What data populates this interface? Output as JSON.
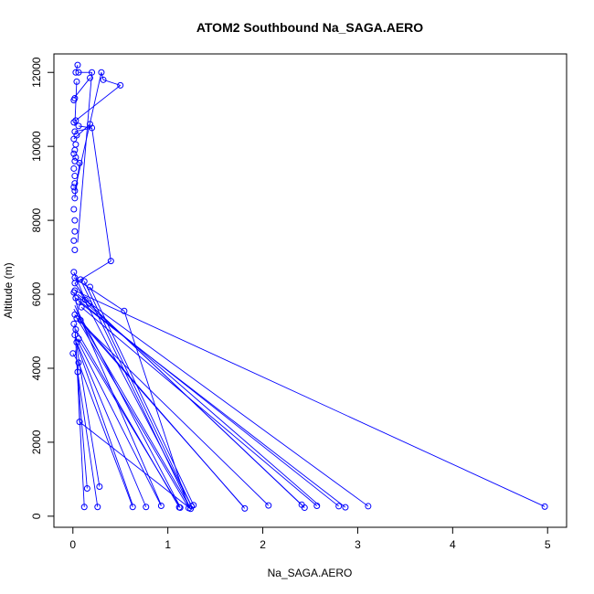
{
  "chart_data": {
    "type": "scatter",
    "title": "ATOM2 Southbound Na_SAGA.AERO",
    "xlabel": "Na_SAGA.AERO",
    "ylabel": "Altitude (m)",
    "xlim": [
      -0.2,
      5.2
    ],
    "ylim": [
      -300,
      12500
    ],
    "xticks": [
      0,
      1,
      2,
      3,
      4,
      5
    ],
    "yticks": [
      0,
      2000,
      4000,
      6000,
      8000,
      10000,
      12000
    ],
    "grid": false,
    "legend": "none",
    "color": "#0000ff",
    "marker": "open-circle",
    "connected": true,
    "points": [
      [
        0.05,
        12200
      ],
      [
        0.03,
        12000
      ],
      [
        0.06,
        12000
      ],
      [
        0.2,
        12000
      ],
      [
        0.3,
        12000
      ],
      [
        0.32,
        11800
      ],
      [
        0.5,
        11650
      ],
      [
        0.18,
        11850
      ],
      [
        0.04,
        11750
      ],
      [
        0.02,
        11300
      ],
      [
        0.01,
        11250
      ],
      [
        0.03,
        10700
      ],
      [
        0.01,
        10650
      ],
      [
        0.06,
        10550
      ],
      [
        0.18,
        10600
      ],
      [
        0.2,
        10500
      ],
      [
        0.02,
        10400
      ],
      [
        0.04,
        10300
      ],
      [
        0.01,
        10200
      ],
      [
        0.03,
        10050
      ],
      [
        0.02,
        9900
      ],
      [
        0.01,
        9800
      ],
      [
        0.03,
        9700
      ],
      [
        0.02,
        9600
      ],
      [
        0.07,
        9550
      ],
      [
        0.01,
        9400
      ],
      [
        0.02,
        9200
      ],
      [
        0.02,
        9000
      ],
      [
        0.01,
        8900
      ],
      [
        0.02,
        8800
      ],
      [
        0.02,
        8600
      ],
      [
        0.01,
        8300
      ],
      [
        0.02,
        8000
      ],
      [
        0.02,
        7700
      ],
      [
        0.01,
        7450
      ],
      [
        0.02,
        7200
      ],
      [
        0.4,
        6900
      ],
      [
        0.01,
        6600
      ],
      [
        0.02,
        6450
      ],
      [
        0.02,
        6300
      ],
      [
        0.08,
        6400
      ],
      [
        0.12,
        6350
      ],
      [
        0.18,
        6200
      ],
      [
        0.02,
        6100
      ],
      [
        0.01,
        6050
      ],
      [
        0.03,
        5900
      ],
      [
        0.06,
        5800
      ],
      [
        0.09,
        5650
      ],
      [
        0.13,
        5850
      ],
      [
        0.17,
        5750
      ],
      [
        0.54,
        5550
      ],
      [
        0.02,
        5450
      ],
      [
        0.04,
        5350
      ],
      [
        0.08,
        5300
      ],
      [
        0.01,
        5200
      ],
      [
        0.03,
        5050
      ],
      [
        0.02,
        4900
      ],
      [
        0.06,
        4800
      ],
      [
        0.04,
        4700
      ],
      [
        0.0,
        4400
      ],
      [
        0.06,
        4150
      ],
      [
        0.05,
        3900
      ],
      [
        0.07,
        2550
      ],
      [
        0.15,
        750
      ],
      [
        0.28,
        800
      ],
      [
        0.12,
        250
      ],
      [
        0.26,
        250
      ],
      [
        0.63,
        250
      ],
      [
        0.77,
        250
      ],
      [
        0.93,
        280
      ],
      [
        1.12,
        240
      ],
      [
        1.13,
        230
      ],
      [
        1.22,
        220
      ],
      [
        1.24,
        200
      ],
      [
        1.25,
        270
      ],
      [
        1.27,
        300
      ],
      [
        1.81,
        210
      ],
      [
        2.06,
        290
      ],
      [
        2.41,
        310
      ],
      [
        2.44,
        230
      ],
      [
        2.57,
        280
      ],
      [
        2.8,
        270
      ],
      [
        2.87,
        240
      ],
      [
        3.11,
        270
      ],
      [
        4.97,
        260
      ]
    ],
    "segments": [
      [
        [
          0.05,
          12200
        ],
        [
          0.03,
          12000
        ]
      ],
      [
        [
          0.06,
          12000
        ],
        [
          0.2,
          12000
        ]
      ],
      [
        [
          0.3,
          12000
        ],
        [
          0.32,
          11800
        ]
      ],
      [
        [
          0.32,
          11800
        ],
        [
          0.5,
          11650
        ]
      ],
      [
        [
          0.5,
          11650
        ],
        [
          0.03,
          10700
        ]
      ],
      [
        [
          0.18,
          11850
        ],
        [
          0.01,
          11300
        ]
      ],
      [
        [
          0.04,
          11750
        ],
        [
          0.02,
          10550
        ]
      ],
      [
        [
          0.3,
          12000
        ],
        [
          0.02,
          8800
        ]
      ],
      [
        [
          0.2,
          12000
        ],
        [
          0.05,
          7400
        ]
      ],
      [
        [
          0.02,
          10400
        ],
        [
          0.2,
          10500
        ]
      ],
      [
        [
          0.06,
          10550
        ],
        [
          0.2,
          10500
        ]
      ],
      [
        [
          0.2,
          10500
        ],
        [
          0.4,
          6900
        ]
      ],
      [
        [
          0.18,
          10600
        ],
        [
          0.01,
          10200
        ]
      ],
      [
        [
          0.02,
          9700
        ],
        [
          0.07,
          9550
        ]
      ],
      [
        [
          0.07,
          9550
        ],
        [
          0.02,
          8600
        ]
      ],
      [
        [
          0.4,
          6900
        ],
        [
          0.02,
          6300
        ]
      ],
      [
        [
          0.01,
          6450
        ],
        [
          0.54,
          5550
        ]
      ],
      [
        [
          0.54,
          5550
        ],
        [
          1.22,
          220
        ]
      ],
      [
        [
          0.02,
          6100
        ],
        [
          4.97,
          260
        ]
      ],
      [
        [
          0.05,
          6000
        ],
        [
          3.11,
          270
        ]
      ],
      [
        [
          0.03,
          5900
        ],
        [
          2.8,
          270
        ]
      ],
      [
        [
          0.06,
          5800
        ],
        [
          2.87,
          240
        ]
      ],
      [
        [
          0.09,
          5650
        ],
        [
          2.57,
          280
        ]
      ],
      [
        [
          0.13,
          5850
        ],
        [
          2.44,
          230
        ]
      ],
      [
        [
          0.17,
          5750
        ],
        [
          2.41,
          310
        ]
      ],
      [
        [
          0.04,
          5350
        ],
        [
          2.06,
          290
        ]
      ],
      [
        [
          0.08,
          5300
        ],
        [
          1.81,
          210
        ]
      ],
      [
        [
          0.18,
          6200
        ],
        [
          1.27,
          300
        ]
      ],
      [
        [
          0.12,
          6350
        ],
        [
          1.25,
          270
        ]
      ],
      [
        [
          0.08,
          6400
        ],
        [
          1.24,
          200
        ]
      ],
      [
        [
          0.02,
          5450
        ],
        [
          1.22,
          220
        ]
      ],
      [
        [
          0.06,
          4800
        ],
        [
          1.13,
          230
        ]
      ],
      [
        [
          0.03,
          5050
        ],
        [
          1.12,
          240
        ]
      ],
      [
        [
          0.02,
          4900
        ],
        [
          0.93,
          280
        ]
      ],
      [
        [
          0.04,
          4700
        ],
        [
          0.77,
          250
        ]
      ],
      [
        [
          0.06,
          4150
        ],
        [
          0.63,
          250
        ]
      ],
      [
        [
          0.05,
          3900
        ],
        [
          0.26,
          250
        ]
      ],
      [
        [
          0.07,
          2550
        ],
        [
          1.24,
          200
        ]
      ],
      [
        [
          0.02,
          5200
        ],
        [
          0.12,
          250
        ]
      ],
      [
        [
          0.03,
          4500
        ],
        [
          0.15,
          750
        ]
      ],
      [
        [
          0.04,
          4600
        ],
        [
          0.28,
          800
        ]
      ],
      [
        [
          0.01,
          5600
        ],
        [
          1.22,
          300
        ]
      ],
      [
        [
          0.02,
          5700
        ],
        [
          0.93,
          300
        ]
      ],
      [
        [
          0.05,
          6200
        ],
        [
          1.26,
          220
        ]
      ],
      [
        [
          0.03,
          6000
        ],
        [
          2.6,
          280
        ]
      ],
      [
        [
          0.06,
          5500
        ],
        [
          1.12,
          300
        ]
      ],
      [
        [
          0.02,
          4800
        ],
        [
          0.63,
          300
        ]
      ],
      [
        [
          0.1,
          5200
        ],
        [
          1.8,
          250
        ]
      ],
      [
        [
          0.0,
          4400
        ],
        [
          0.06,
          4150
        ]
      ],
      [
        [
          0.06,
          4150
        ],
        [
          0.05,
          3900
        ]
      ],
      [
        [
          0.05,
          3900
        ],
        [
          0.07,
          2550
        ]
      ],
      [
        [
          0.01,
          6050
        ],
        [
          0.08,
          5300
        ]
      ],
      [
        [
          0.02,
          6300
        ],
        [
          0.17,
          5750
        ]
      ],
      [
        [
          0.01,
          6600
        ],
        [
          0.13,
          5850
        ]
      ]
    ]
  }
}
